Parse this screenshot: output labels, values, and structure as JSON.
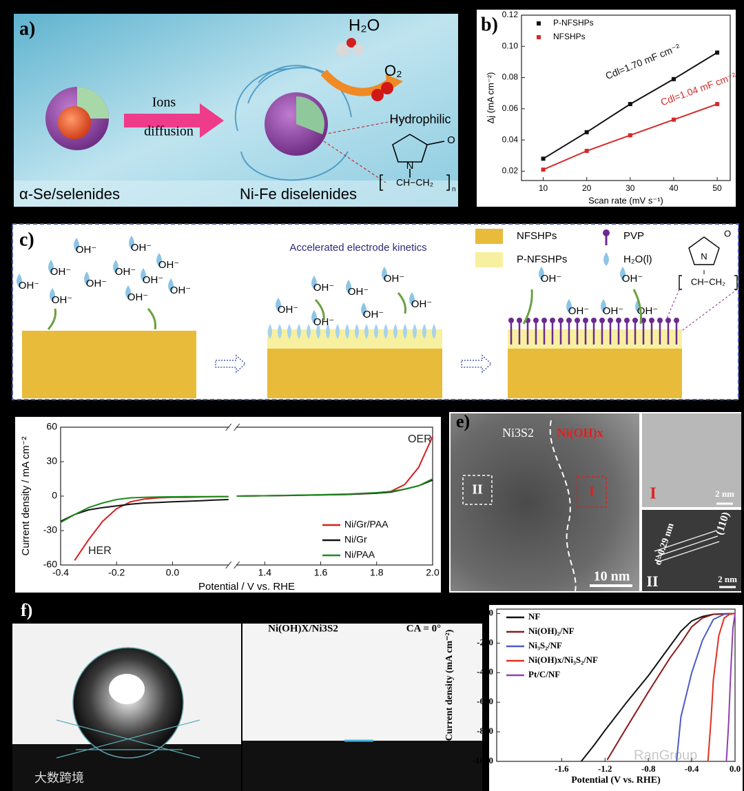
{
  "panel_a": {
    "label": "a)",
    "water": "H₂O",
    "oxygen": "O₂",
    "ions": "Ions",
    "diffusion": "diffusion",
    "hydrophilic": "Hydrophilic",
    "left_caption": "α-Se/selenides",
    "right_caption": "Ni-Fe diselenides",
    "atom_n": "N",
    "atom_o": "O",
    "chain": "CH−CH₂",
    "index": "n"
  },
  "panel_c": {
    "label": "c)",
    "caption": "Accelerated electrode kinetics",
    "legend": [
      "NFSHPs",
      "P-NFSHPs",
      "PVP",
      "H₂O(l)"
    ],
    "atom_n": "N",
    "atom_o": "O",
    "chain": "CH−CH₂",
    "index": "n",
    "ions": [
      "OH⁻",
      "OH⁻",
      "OH⁻",
      "OH⁻",
      "OH⁻",
      "OH⁻",
      "OH⁻",
      "OH⁻",
      "OH⁻",
      "OH⁻",
      "OH⁻",
      "OH⁻",
      "OH⁻",
      "OH⁻",
      "OH⁻",
      "OH⁻",
      "OH⁻",
      "OH⁻",
      "OH⁻",
      "OH⁻",
      "OH⁻",
      "OH⁻",
      "OH⁻"
    ]
  },
  "panel_e": {
    "label": "e)",
    "phase_1": "Ni3S2",
    "phase_2": "Ni(OH)x",
    "box_2": "II",
    "box_1": "I",
    "scale": "10 nm",
    "inset_1": {
      "label": "I",
      "scale": "2 nm"
    },
    "inset_2": {
      "label": "II",
      "spacing": "d=0.29 nm",
      "plane": "(110)",
      "scale": "2 nm"
    }
  },
  "panel_f": {
    "label": "f)",
    "sample": "Ni(OH)X/Ni3S2",
    "angle": "CA = 0°"
  },
  "watermarks": [
    "大数跨境",
    "RanGroup"
  ],
  "chart_data": [
    {
      "type": "line",
      "panel": "b)",
      "markers": true,
      "x": [
        10,
        20,
        30,
        40,
        50
      ],
      "series": [
        {
          "name": "P-NFSHPs",
          "color": "#111111",
          "values": [
            0.028,
            0.045,
            0.063,
            0.079,
            0.096
          ]
        },
        {
          "name": "NFSHPs",
          "color": "#d42a2a",
          "values": [
            0.021,
            0.033,
            0.043,
            0.053,
            0.063
          ]
        }
      ],
      "annotations": [
        "Cdl=1.70 mF cm⁻²",
        "Cdl=1.04 mF cm⁻²"
      ],
      "xlabel": "Scan rate (mV s⁻¹)",
      "ylabel": "Δj (mA cm⁻²)",
      "xlim": [
        5,
        53
      ],
      "ylim": [
        0.014,
        0.12
      ],
      "xticks": [
        10,
        20,
        30,
        40,
        50
      ],
      "yticks": [
        0.02,
        0.04,
        0.06,
        0.08,
        {
          "value": 0.1,
          "label": "0.10"
        },
        0.12
      ],
      "legend": "upper left"
    },
    {
      "type": "line",
      "markers": false,
      "x": [
        -0.4,
        -0.35,
        -0.3,
        -0.25,
        -0.2,
        -0.15,
        -0.1,
        -0.05,
        0,
        0.05,
        0.1,
        0.15,
        0.2,
        1.3,
        1.4,
        1.5,
        1.6,
        1.7,
        1.8,
        1.85,
        1.9,
        1.95,
        2.0
      ],
      "xbreak": [
        0.2,
        1.3
      ],
      "series": [
        {
          "name": "Ni/Gr/PAA",
          "color": "#d42020",
          "values": [
            null,
            -56,
            -38,
            -22,
            -11,
            -5,
            -2.5,
            -1.5,
            -1,
            -1,
            -0.8,
            -0.5,
            -0.5,
            0,
            0.3,
            0.6,
            1,
            1.5,
            2.5,
            4,
            10,
            25,
            52
          ]
        },
        {
          "name": "Ni/Gr",
          "color": "#111111",
          "values": [
            -22,
            -16,
            -12,
            -10,
            -8.5,
            -7,
            -6,
            -5.5,
            -5,
            -4.5,
            -4,
            -3.5,
            -3,
            0,
            0.3,
            0.6,
            1,
            1.5,
            2.5,
            3.5,
            6,
            9,
            14
          ]
        },
        {
          "name": "Ni/PAA",
          "color": "#1f8a1f",
          "values": [
            -23,
            -16,
            -10,
            -6,
            -3,
            -1.5,
            -1,
            -0.8,
            -0.6,
            -0.5,
            -0.5,
            -0.5,
            -0.5,
            0,
            0.3,
            0.7,
            1.2,
            1.8,
            3,
            4,
            6,
            9,
            15
          ]
        }
      ],
      "annotations": [
        "OER",
        "HER"
      ],
      "xlabel": "Potential / V vs. RHE",
      "ylabel": "Current density / mA cm⁻²",
      "xlim": [
        -0.4,
        2.0
      ],
      "ylim": [
        -60,
        60
      ],
      "xticks": [
        -0.4,
        -0.2,
        {
          "value": 0,
          "label": "0.0"
        },
        1.4,
        1.6,
        1.8,
        {
          "value": 2,
          "label": "2.0"
        }
      ],
      "yticks": [
        -60,
        -30,
        0,
        30,
        60
      ],
      "legend": "lower right"
    },
    {
      "type": "line",
      "markers": false,
      "series": [
        {
          "name": "NF",
          "color": "#111111",
          "x": [
            0,
            -0.2,
            -0.3,
            -0.4,
            -0.5,
            -0.6,
            -0.8,
            -1.0,
            -1.2,
            -1.3,
            -1.42
          ],
          "values": [
            0,
            -5,
            -20,
            -50,
            -120,
            -220,
            -420,
            -600,
            -790,
            -890,
            -1000
          ]
        },
        {
          "name": "Ni(OH)₂/NF",
          "color": "#8b1a1a",
          "x": [
            0,
            -0.2,
            -0.3,
            -0.4,
            -0.5,
            -0.6,
            -0.8,
            -1.0,
            -1.18
          ],
          "values": [
            0,
            -5,
            -30,
            -90,
            -200,
            -300,
            -530,
            -770,
            -990
          ]
        },
        {
          "name": "Ni₃S₂/NF",
          "color": "#4a5bc4",
          "x": [
            0,
            -0.1,
            -0.2,
            -0.3,
            -0.4,
            -0.5,
            -0.54
          ],
          "values": [
            0,
            -5,
            -40,
            -180,
            -400,
            -700,
            -1000
          ]
        },
        {
          "name": "Ni(OH)x/Ni₃S₂/NF",
          "color": "#e03020",
          "x": [
            0,
            -0.05,
            -0.1,
            -0.15,
            -0.2,
            -0.22,
            -0.25
          ],
          "values": [
            0,
            -5,
            -30,
            -150,
            -450,
            -700,
            -1000
          ]
        },
        {
          "name": "Pt/C/NF",
          "color": "#9040b0",
          "x": [
            0,
            -0.02,
            -0.04,
            -0.06,
            -0.08
          ],
          "values": [
            0,
            -100,
            -400,
            -750,
            -1000
          ]
        }
      ],
      "xlabel": "Potential (V vs. RHE)",
      "ylabel": "Current density (mA cm⁻²)",
      "xlim": [
        -2.2,
        0
      ],
      "ylim": [
        -1000,
        30
      ],
      "xticks": [
        -1.6,
        -1.2,
        -0.8,
        -0.4,
        {
          "value": 0,
          "label": "0.0"
        }
      ],
      "yticks": [
        0,
        -200,
        -400,
        -600,
        -800,
        -1000
      ],
      "legend": "upper left"
    }
  ]
}
